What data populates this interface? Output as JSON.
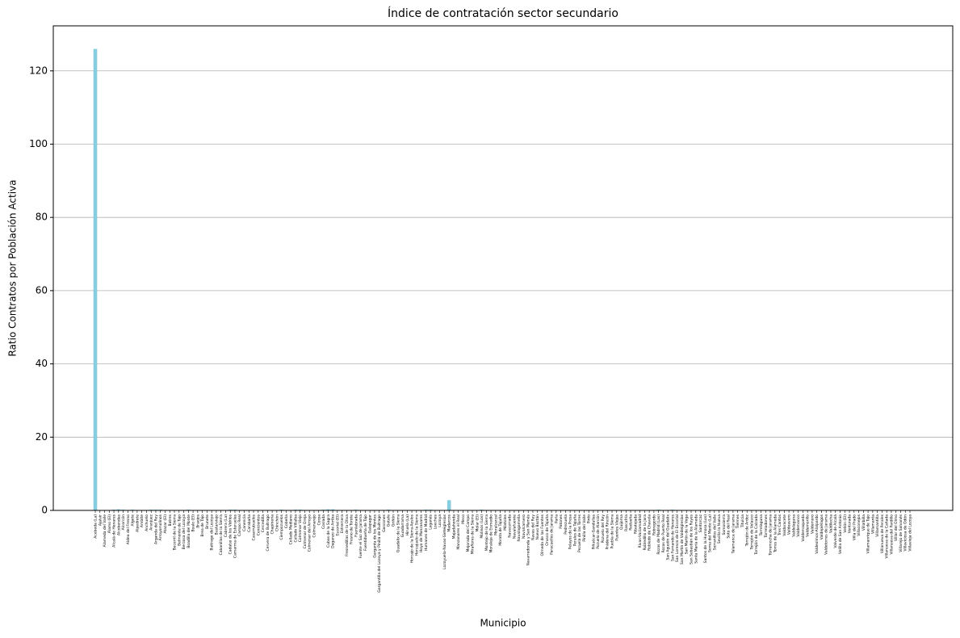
{
  "chart_data": {
    "type": "bar",
    "title": "Índice de contratación sector secundario",
    "xlabel": "Municipio",
    "ylabel": "Ratio Contratos por Población Activa",
    "color": "#87cde0",
    "categories": [
      "Acebeda (La)",
      "Ajalvir",
      "Alameda del Valle",
      "Álamo (El)",
      "Alcalá de Henares",
      "Alcobendas",
      "Alcorcón",
      "Aldea del Fresno",
      "Algete",
      "Alpedrete",
      "Ambite",
      "Anchuelo",
      "Aranjuez",
      "Arganda del Rey",
      "Arroyomolinos",
      "Atazar (El)",
      "Batres",
      "Becerril de la Sierra",
      "Belmonte de Tajo",
      "Berzosa del Lozoya",
      "Boadilla del Monte",
      "Boalo (El)",
      "Braojos",
      "Brea de Tajo",
      "Brunete",
      "Buitrago del Lozoya",
      "Bustarviejo",
      "Cabanillas de la Sierra",
      "Cabrera (La)",
      "Cadalso de los Vidrios",
      "Camarma de Esteruelas",
      "Campo Real",
      "Canencia",
      "Carabaña",
      "Casarrubuelos",
      "Cenicientos",
      "Cercedilla",
      "Cervera de Buitrago",
      "Chapinería",
      "Chinchón",
      "Ciempozuelos",
      "Cobeña",
      "Collado Mediano",
      "Collado Villalba",
      "Colmenar Viejo",
      "Colmenar de Oreja",
      "Colmenar del Arroyo",
      "Colmenarejo",
      "Corpa",
      "Coslada",
      "Cubas de la Sagra",
      "Daganzo de Arriba",
      "Escorial (El)",
      "Estremera",
      "Fresnedillas de la Oliva",
      "Fresno de Torote",
      "Fuenlabrada",
      "Fuente el Saz de Jarama",
      "Fuentidueña de Tajo",
      "Galapagar",
      "Garganta de los Montes",
      "Gargantilla del Lozoya y Pinilla de Buitrago",
      "Gascones",
      "Getafe",
      "Griñón",
      "Guadalix de la Sierra",
      "Guadarrama",
      "Hiruela (La)",
      "Horcajo de la Sierra-Aoslos",
      "Horcajuelo de la Sierra",
      "Hoyo de Manzanares",
      "Humanes de Madrid",
      "Leganés",
      "Loeches",
      "Lozoya",
      "Lozoyuela-Navas-Sieteiglesias",
      "Madarcos",
      "Majadahonda",
      "Manzanares el Real",
      "Meco",
      "Mejorada del Campo",
      "Miraflores de la Sierra",
      "Molar (El)",
      "Molinos (Los)",
      "Montejo de la Sierra",
      "Moraleja de Enmedio",
      "Moralzarzal",
      "Morata de Tajuña",
      "Móstoles",
      "Navacerrada",
      "Navalafuente",
      "Navalagamella",
      "Navalcarnero",
      "Navarredonda y San Mamés",
      "Navas del Rey",
      "Nuevo Baztán",
      "Olmeda de las Fuentes",
      "Orusco de Tajuña",
      "Paracuellos de Jarama",
      "Parla",
      "Patones",
      "Pedrezuela",
      "Pelayos de la Presa",
      "Perales de Tajuña",
      "Pezuela de las Torres",
      "Pinilla del Valle",
      "Pinto",
      "Piñuécar-Gandullas",
      "Pozuelo de Alarcón",
      "Pozuelo del Rey",
      "Prádena del Rincón",
      "Puebla de la Sierra",
      "Puentes Viejas",
      "Quijorna",
      "Rascafría",
      "Redueña",
      "Ribatejada",
      "Rivas-Vaciamadrid",
      "Robledillo de la Jara",
      "Robledo de Chavela",
      "Robregordo",
      "Rozas de Madrid (Las)",
      "Rozas de Puerto Real",
      "San Agustín del Guadalix",
      "San Fernando de Henares",
      "San Lorenzo de El Escorial",
      "San Martín de Valdeiglesias",
      "San Martín de la Vega",
      "San Sebastián de los Reyes",
      "Santa María de la Alameda",
      "Santorcaz",
      "Santos de la Humosa (Los)",
      "Serna del Monte (La)",
      "Serranillos del Valle",
      "Sevilla la Nueva",
      "Somosierra",
      "Soto del Real",
      "Talamanca de Jarama",
      "Tielmes",
      "Titulcia",
      "Torrejón de Ardoz",
      "Torrejón de Velasco",
      "Torrejón de la Calzada",
      "Torrelaguna",
      "Torrelodones",
      "Torremocha de Jarama",
      "Torres de la Alameda",
      "Tres Cantos",
      "Valdaracete",
      "Valdeavero",
      "Valdelaguna",
      "Valdemanco",
      "Valdemaqueda",
      "Valdemorillo",
      "Valdemoro",
      "Valdeolmos-Alalpardo",
      "Valdepiélagos",
      "Valdetorres de Jarama",
      "Valdilecha",
      "Valverde de Alcalá",
      "Velilla de San Antonio",
      "Vellón (El)",
      "Venturada",
      "Villa del Prado",
      "Villaconejos",
      "Villalbilla",
      "Villamanrique de Tajo",
      "Villamanta",
      "Villamantilla",
      "Villanueva de Perales",
      "Villanueva de la Cañada",
      "Villanueva del Pardillo",
      "Villar del Olmo",
      "Villarejo de Salvanés",
      "Villaviciosa de Odón",
      "Villavieja del Lozoya"
    ],
    "values": [
      126,
      0.1,
      0.1,
      0.1,
      0.2,
      0.3,
      0.2,
      0.1,
      0.2,
      0.1,
      0.1,
      0.1,
      0.2,
      0.2,
      0.2,
      0.1,
      0.1,
      0.1,
      0.1,
      0.1,
      0.2,
      0.1,
      0.1,
      0.1,
      0.1,
      0.1,
      0.1,
      0.1,
      0.1,
      0.2,
      0.2,
      0.1,
      0.1,
      0.1,
      0.1,
      0.1,
      0.1,
      0.1,
      0.1,
      0.1,
      0.2,
      0.1,
      0.1,
      0.2,
      0.2,
      0.1,
      0.1,
      0.1,
      0.1,
      0.2,
      0.3,
      0.3,
      0.1,
      0.1,
      0.1,
      0.1,
      0.2,
      0.1,
      0.1,
      0.1,
      0.1,
      0.1,
      0.1,
      0.2,
      0.1,
      0.1,
      0.1,
      0.1,
      0.1,
      0.1,
      0.1,
      0.2,
      0.2,
      0.1,
      0.1,
      0.1,
      2.8,
      0.1,
      0.1,
      0.1,
      0.1,
      0.1,
      0.1,
      0.2,
      0.1,
      0.1,
      0.1,
      0.1,
      0.1,
      0.1,
      0.1,
      0.1,
      0.1,
      0.1,
      0.1,
      0.1,
      0.1,
      0.1,
      0.1,
      0.1,
      0.1,
      0.1,
      0.1,
      0.1,
      0.1,
      0.1,
      0.1,
      0.1,
      0.1,
      0.1,
      0.1,
      0.1,
      0.1,
      0.1,
      0.1,
      0.1,
      0.1,
      0.1,
      0.1,
      0.1,
      0.1,
      0.2,
      0.1,
      0.1,
      0.2,
      0.1,
      0.1,
      0.1,
      0.1,
      0.1,
      0.1,
      0.1,
      0.1,
      0.1,
      0.1,
      0.1,
      0.1,
      0.1,
      0.1,
      0.1,
      0.1,
      0.1,
      0.1,
      0.1,
      0.1,
      0.1,
      0.1,
      0.1,
      0.1,
      0.1,
      0.1,
      0.1,
      0.1,
      0.1,
      0.1,
      0.1,
      0.1,
      0.1,
      0.1,
      0.1,
      0.1,
      0.1,
      0.1,
      0.1,
      0.1,
      0.1,
      0.1,
      0.1,
      0.1,
      0.1,
      0.1,
      0.1,
      0.1,
      0.1,
      0.1,
      0.1
    ],
    "ylim": [
      0,
      132.3
    ],
    "yticks": [
      0,
      20,
      40,
      60,
      80,
      100,
      120
    ],
    "grid": true
  }
}
